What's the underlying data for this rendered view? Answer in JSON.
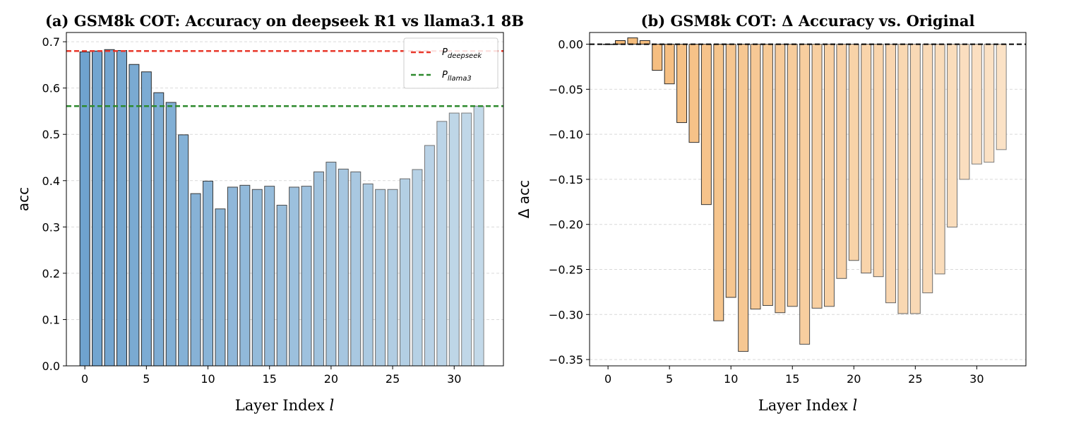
{
  "chart_data": [
    {
      "type": "bar",
      "title": "(a) GSM8k COT: Accuracy on deepseek R1 vs llama3.1 8B",
      "xlabel": "Layer Index ",
      "xlabel_var": "l",
      "ylabel": "acc",
      "xlim": [
        -1.5,
        34
      ],
      "ylim": [
        0,
        0.72
      ],
      "xticks": [
        0,
        5,
        10,
        15,
        20,
        25,
        30
      ],
      "yticks": [
        0.0,
        0.1,
        0.2,
        0.3,
        0.4,
        0.5,
        0.6,
        0.7
      ],
      "ytick_labels": [
        "0.0",
        "0.1",
        "0.2",
        "0.3",
        "0.4",
        "0.5",
        "0.6",
        "0.7"
      ],
      "grid": "y-dashed",
      "bar_color_start": "#6fa3cf",
      "bar_color_end": "#c3d9e9",
      "x": [
        0,
        1,
        2,
        3,
        4,
        5,
        6,
        7,
        8,
        9,
        10,
        11,
        12,
        13,
        14,
        15,
        16,
        17,
        18,
        19,
        20,
        21,
        22,
        23,
        24,
        25,
        26,
        27,
        28,
        29,
        30,
        31,
        32
      ],
      "values": [
        0.678,
        0.68,
        0.683,
        0.681,
        0.651,
        0.635,
        0.59,
        0.569,
        0.499,
        0.372,
        0.399,
        0.339,
        0.386,
        0.39,
        0.381,
        0.388,
        0.347,
        0.386,
        0.388,
        0.419,
        0.44,
        0.425,
        0.419,
        0.393,
        0.381,
        0.381,
        0.404,
        0.424,
        0.476,
        0.528,
        0.546,
        0.546,
        0.561
      ],
      "reference_lines": [
        {
          "name": "deepseek",
          "label_base": "P",
          "label_sub": "deepseek",
          "value": 0.68,
          "color": "#e8382b"
        },
        {
          "name": "llama3",
          "label_base": "P",
          "label_sub": "llama3",
          "value": 0.561,
          "color": "#2e8a2e"
        }
      ],
      "legend": "top-right"
    },
    {
      "type": "bar",
      "title": "(b) GSM8k COT: Δ Accuracy vs. Original",
      "xlabel": "Layer Index ",
      "xlabel_var": "l",
      "ylabel": "Δ acc",
      "xlim": [
        -1.5,
        34
      ],
      "ylim": [
        -0.357,
        0.013
      ],
      "xticks": [
        0,
        5,
        10,
        15,
        20,
        25,
        30
      ],
      "yticks": [
        0.0,
        -0.05,
        -0.1,
        -0.15,
        -0.2,
        -0.25,
        -0.3,
        -0.35
      ],
      "ytick_labels": [
        "0.00",
        "−0.05",
        "−0.10",
        "−0.15",
        "−0.20",
        "−0.25",
        "−0.30",
        "−0.35"
      ],
      "grid": "y-dashed",
      "bar_color_start": "#f4b977",
      "bar_color_end": "#fbe2c6",
      "x": [
        0,
        1,
        2,
        3,
        4,
        5,
        6,
        7,
        8,
        9,
        10,
        11,
        12,
        13,
        14,
        15,
        16,
        17,
        18,
        19,
        20,
        21,
        22,
        23,
        24,
        25,
        26,
        27,
        28,
        29,
        30,
        31,
        32
      ],
      "values": [
        0.0,
        0.004,
        0.007,
        0.004,
        -0.029,
        -0.044,
        -0.087,
        -0.109,
        -0.178,
        -0.307,
        -0.281,
        -0.341,
        -0.294,
        -0.29,
        -0.298,
        -0.291,
        -0.333,
        -0.293,
        -0.291,
        -0.26,
        -0.24,
        -0.254,
        -0.258,
        -0.287,
        -0.299,
        -0.299,
        -0.276,
        -0.255,
        -0.203,
        -0.15,
        -0.133,
        -0.131,
        -0.117
      ],
      "reference_lines": [
        {
          "name": "zero",
          "value": 0.0,
          "color": "#000000"
        }
      ]
    }
  ]
}
